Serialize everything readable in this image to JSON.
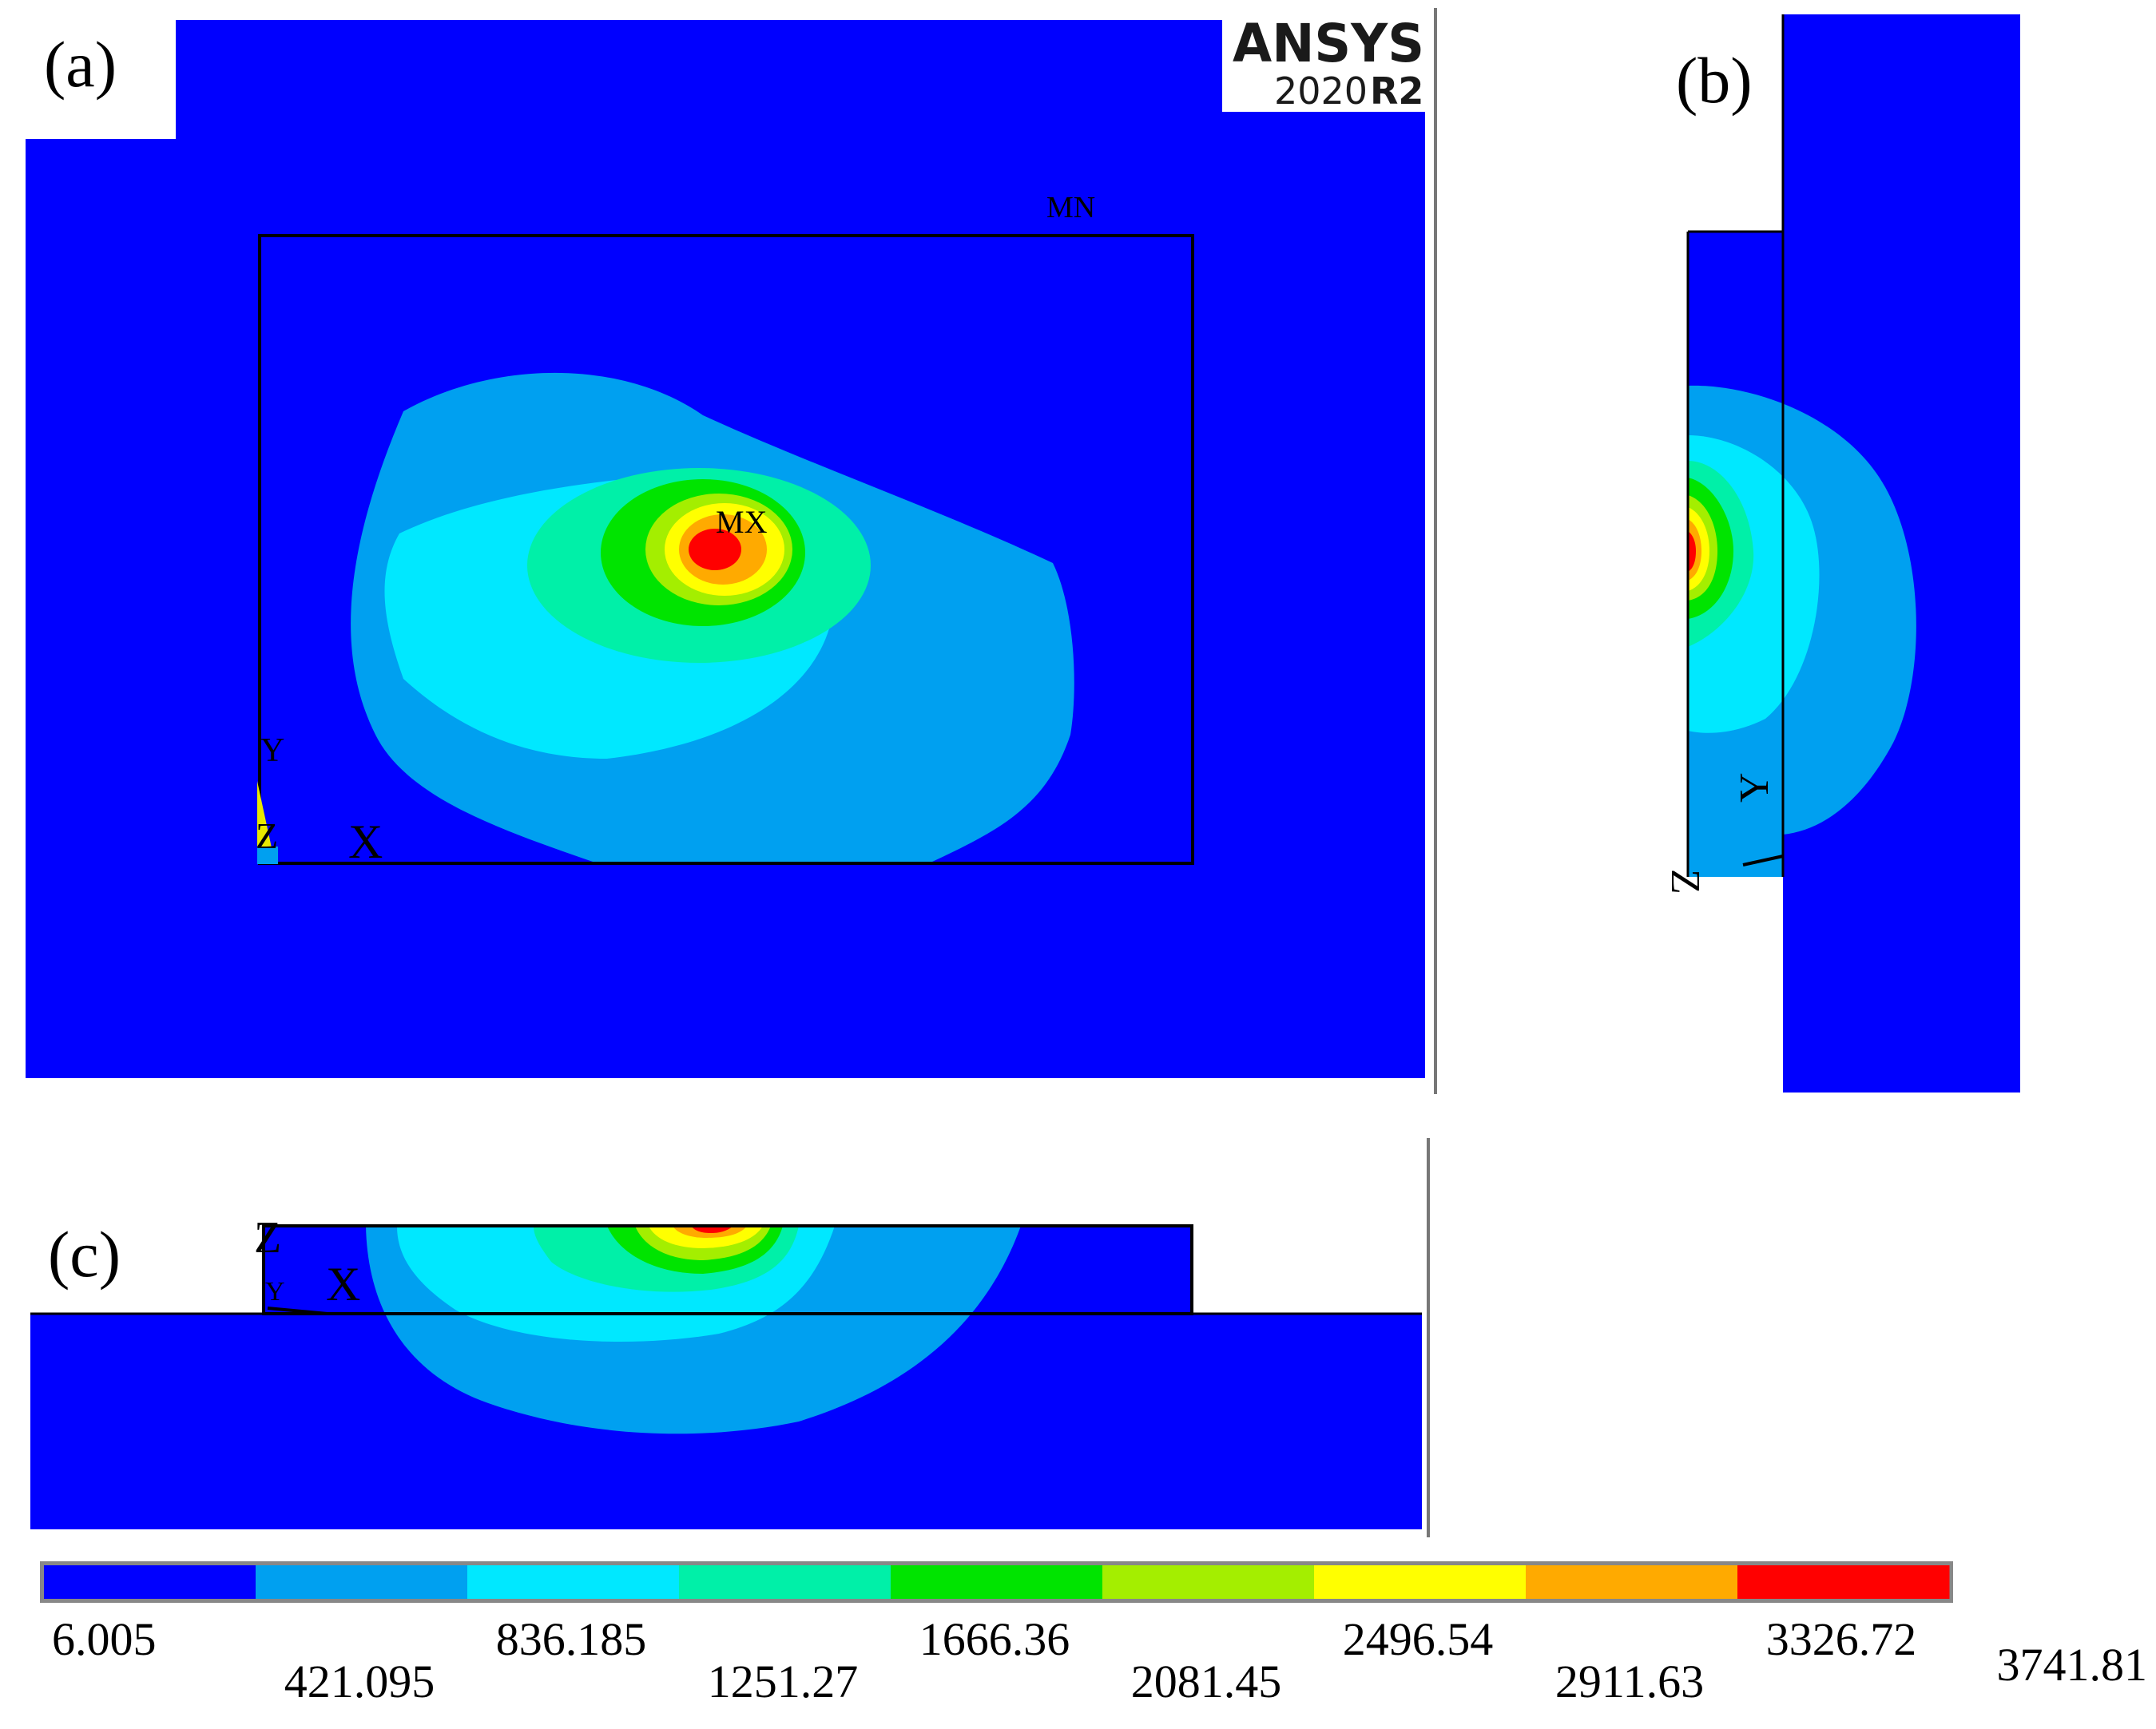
{
  "figure": {
    "panel_labels": [
      "(a)",
      "(b)",
      "(c)"
    ],
    "software": {
      "name": "ANSYS",
      "version": "2020",
      "release": "R2"
    },
    "markers": {
      "min": "MN",
      "max": "MX"
    },
    "axes": {
      "x": "X",
      "y": "Y",
      "z": "Z"
    }
  },
  "legend": {
    "values": [
      "6.005",
      "421.095",
      "836.185",
      "1251.27",
      "1666.36",
      "2081.45",
      "2496.54",
      "2911.63",
      "3326.72",
      "3741.81"
    ],
    "colors": [
      "#0000ff",
      "#00a0f0",
      "#00e8ff",
      "#00f0a8",
      "#00e400",
      "#a4ee00",
      "#ffff00",
      "#ffaa00",
      "#ff0000"
    ]
  },
  "colors": {
    "background": "#0000ff",
    "band1": "#00a0f0",
    "band2": "#00e8ff",
    "band3": "#00f0a8",
    "band4": "#00e400",
    "band5": "#a4ee00",
    "band6": "#ffff00",
    "band7": "#ffaa00",
    "band8": "#ff0000",
    "axis_y": "#e8e800",
    "axis_z": "#2aa0ff"
  }
}
